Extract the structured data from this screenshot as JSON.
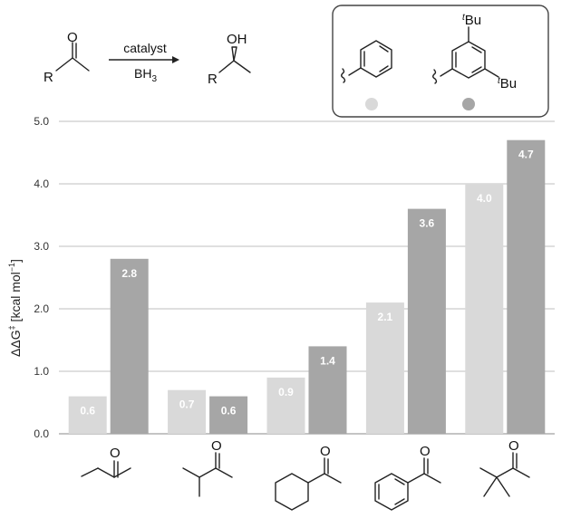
{
  "reaction": {
    "above_arrow": "catalyst",
    "below_arrow_main": "BH",
    "below_arrow_sub": "3",
    "reactant_atom_O": "O",
    "reactant_atom_R": "R",
    "product_atom_OH": "OH",
    "product_atom_R": "R"
  },
  "legend_box": {
    "tbu_top_sup": "t",
    "tbu_top_main": "Bu",
    "tbu_right_sup": "t",
    "tbu_right_main": "Bu"
  },
  "colors": {
    "phenyl": "#d9d9d9",
    "di_tbu_phenyl": "#a6a6a6",
    "grid": "#bfbfbf"
  },
  "chart_data": {
    "type": "bar",
    "categories": [
      "butan-2-one",
      "3-methylbutan-2-one",
      "cyclohexyl methyl ketone",
      "acetophenone",
      "pinacolone"
    ],
    "category_atom_label": "O",
    "series": [
      {
        "values": [
          0.6,
          0.7,
          0.9,
          2.1,
          4.0
        ],
        "labels": [
          "0.6",
          "0.7",
          "0.9",
          "2.1",
          "4.0"
        ]
      },
      {
        "values": [
          2.8,
          0.6,
          1.4,
          3.6,
          4.7
        ],
        "labels": [
          "2.8",
          "0.6",
          "1.4",
          "3.6",
          "4.7"
        ]
      }
    ],
    "ylabel_main": "ΔΔG",
    "ylabel_sup": "‡",
    "ylabel_unit_open": " [kcal mol",
    "ylabel_unit_sup": "−1",
    "ylabel_unit_close": "]",
    "ylim": [
      0,
      5
    ],
    "yticks": [
      "0.0",
      "1.0",
      "2.0",
      "3.0",
      "4.0",
      "5.0"
    ],
    "grid": true,
    "legend": "top-right"
  }
}
